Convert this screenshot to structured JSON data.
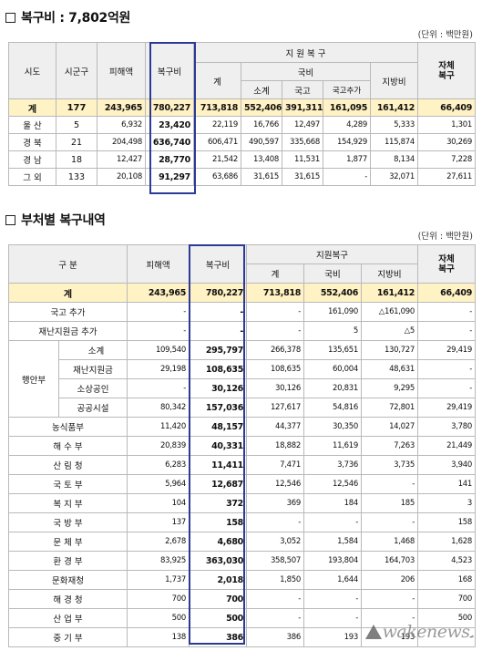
{
  "section1": {
    "title": "복구비 : 7,802억원",
    "unit": "(단위 : 백만원)",
    "headers": {
      "region": "시도",
      "county": "시군구",
      "damage": "피해액",
      "recovery": "복구비",
      "support": "지 원 복 구",
      "sum": "계",
      "national": "국비",
      "sub_total": "소계",
      "treasury": "국고",
      "treasury_add": "국고추가",
      "local": "지방비",
      "self": "자체\n복구"
    },
    "rows": [
      [
        "계",
        "177",
        "243,965",
        "780,227",
        "713,818",
        "552,406",
        "391,311",
        "161,095",
        "161,412",
        "66,409"
      ],
      [
        "울 산",
        "5",
        "6,932",
        "23,420",
        "22,119",
        "16,766",
        "12,497",
        "4,289",
        "5,333",
        "1,301"
      ],
      [
        "경 북",
        "21",
        "204,498",
        "636,740",
        "606,471",
        "490,597",
        "335,668",
        "154,929",
        "115,874",
        "30,269"
      ],
      [
        "경 남",
        "18",
        "12,427",
        "28,770",
        "21,542",
        "13,408",
        "11,531",
        "1,877",
        "8,134",
        "7,228"
      ],
      [
        "그 외",
        "133",
        "20,108",
        "91,297",
        "63,686",
        "31,615",
        "31,615",
        "-",
        "32,071",
        "27,611"
      ]
    ]
  },
  "section2": {
    "title": "부처별 복구내역",
    "unit": "(단위 : 백만원)",
    "headers": {
      "category": "구 분",
      "damage": "피해액",
      "recovery": "복구비",
      "support": "지원복구",
      "sum": "계",
      "national": "국비",
      "local": "지방비",
      "self": "자체\n복구"
    },
    "rows": [
      {
        "g": "",
        "label": "계",
        "v": [
          "243,965",
          "780,227",
          "713,818",
          "552,406",
          "161,412",
          "66,409"
        ]
      },
      {
        "g": "",
        "label": "국고 추가",
        "v": [
          "-",
          "-",
          "-",
          "161,090",
          "△161,090",
          "-"
        ]
      },
      {
        "g": "",
        "label": "재난지원금 추가",
        "v": [
          "-",
          "-",
          "-",
          "5",
          "△5",
          "-"
        ]
      },
      {
        "g": "행안부",
        "label": "소계",
        "v": [
          "109,540",
          "295,797",
          "266,378",
          "135,651",
          "130,727",
          "29,419"
        ]
      },
      {
        "g": "",
        "label": "재난지원금",
        "v": [
          "29,198",
          "108,635",
          "108,635",
          "60,004",
          "48,631",
          "-"
        ]
      },
      {
        "g": "",
        "label": "소상공인",
        "v": [
          "-",
          "30,126",
          "30,126",
          "20,831",
          "9,295",
          "-"
        ]
      },
      {
        "g": "",
        "label": "공공시설",
        "v": [
          "80,342",
          "157,036",
          "127,617",
          "54,816",
          "72,801",
          "29,419"
        ]
      },
      {
        "g": "",
        "label": "농식품부",
        "v": [
          "11,420",
          "48,157",
          "44,377",
          "30,350",
          "14,027",
          "3,780"
        ]
      },
      {
        "g": "",
        "label": "해 수 부",
        "v": [
          "20,839",
          "40,331",
          "18,882",
          "11,619",
          "7,263",
          "21,449"
        ]
      },
      {
        "g": "",
        "label": "산 림 청",
        "v": [
          "6,283",
          "11,411",
          "7,471",
          "3,736",
          "3,735",
          "3,940"
        ]
      },
      {
        "g": "",
        "label": "국 토 부",
        "v": [
          "5,964",
          "12,687",
          "12,546",
          "12,546",
          "-",
          "141"
        ]
      },
      {
        "g": "",
        "label": "복 지 부",
        "v": [
          "104",
          "372",
          "369",
          "184",
          "185",
          "3"
        ]
      },
      {
        "g": "",
        "label": "국 방 부",
        "v": [
          "137",
          "158",
          "-",
          "-",
          "-",
          "158"
        ]
      },
      {
        "g": "",
        "label": "문 체 부",
        "v": [
          "2,678",
          "4,680",
          "3,052",
          "1,584",
          "1,468",
          "1,628"
        ]
      },
      {
        "g": "",
        "label": "환 경 부",
        "v": [
          "83,925",
          "363,030",
          "358,507",
          "193,804",
          "164,703",
          "4,523"
        ]
      },
      {
        "g": "",
        "label": "문화재청",
        "v": [
          "1,737",
          "2,018",
          "1,850",
          "1,644",
          "206",
          "168"
        ]
      },
      {
        "g": "",
        "label": "해 경 청",
        "v": [
          "700",
          "700",
          "-",
          "-",
          "-",
          "700"
        ]
      },
      {
        "g": "",
        "label": "산 업 부",
        "v": [
          "500",
          "500",
          "-",
          "-",
          "-",
          "500"
        ]
      },
      {
        "g": "",
        "label": "중 기 부",
        "v": [
          "138",
          "386",
          "386",
          "193",
          "193",
          "-"
        ]
      }
    ]
  },
  "watermark": {
    "text": "wakenews.",
    "color": "#777777"
  },
  "colors": {
    "total_row": "#fff2c4",
    "header_bg": "#efefef",
    "highlight_border": "#2c3a97"
  }
}
